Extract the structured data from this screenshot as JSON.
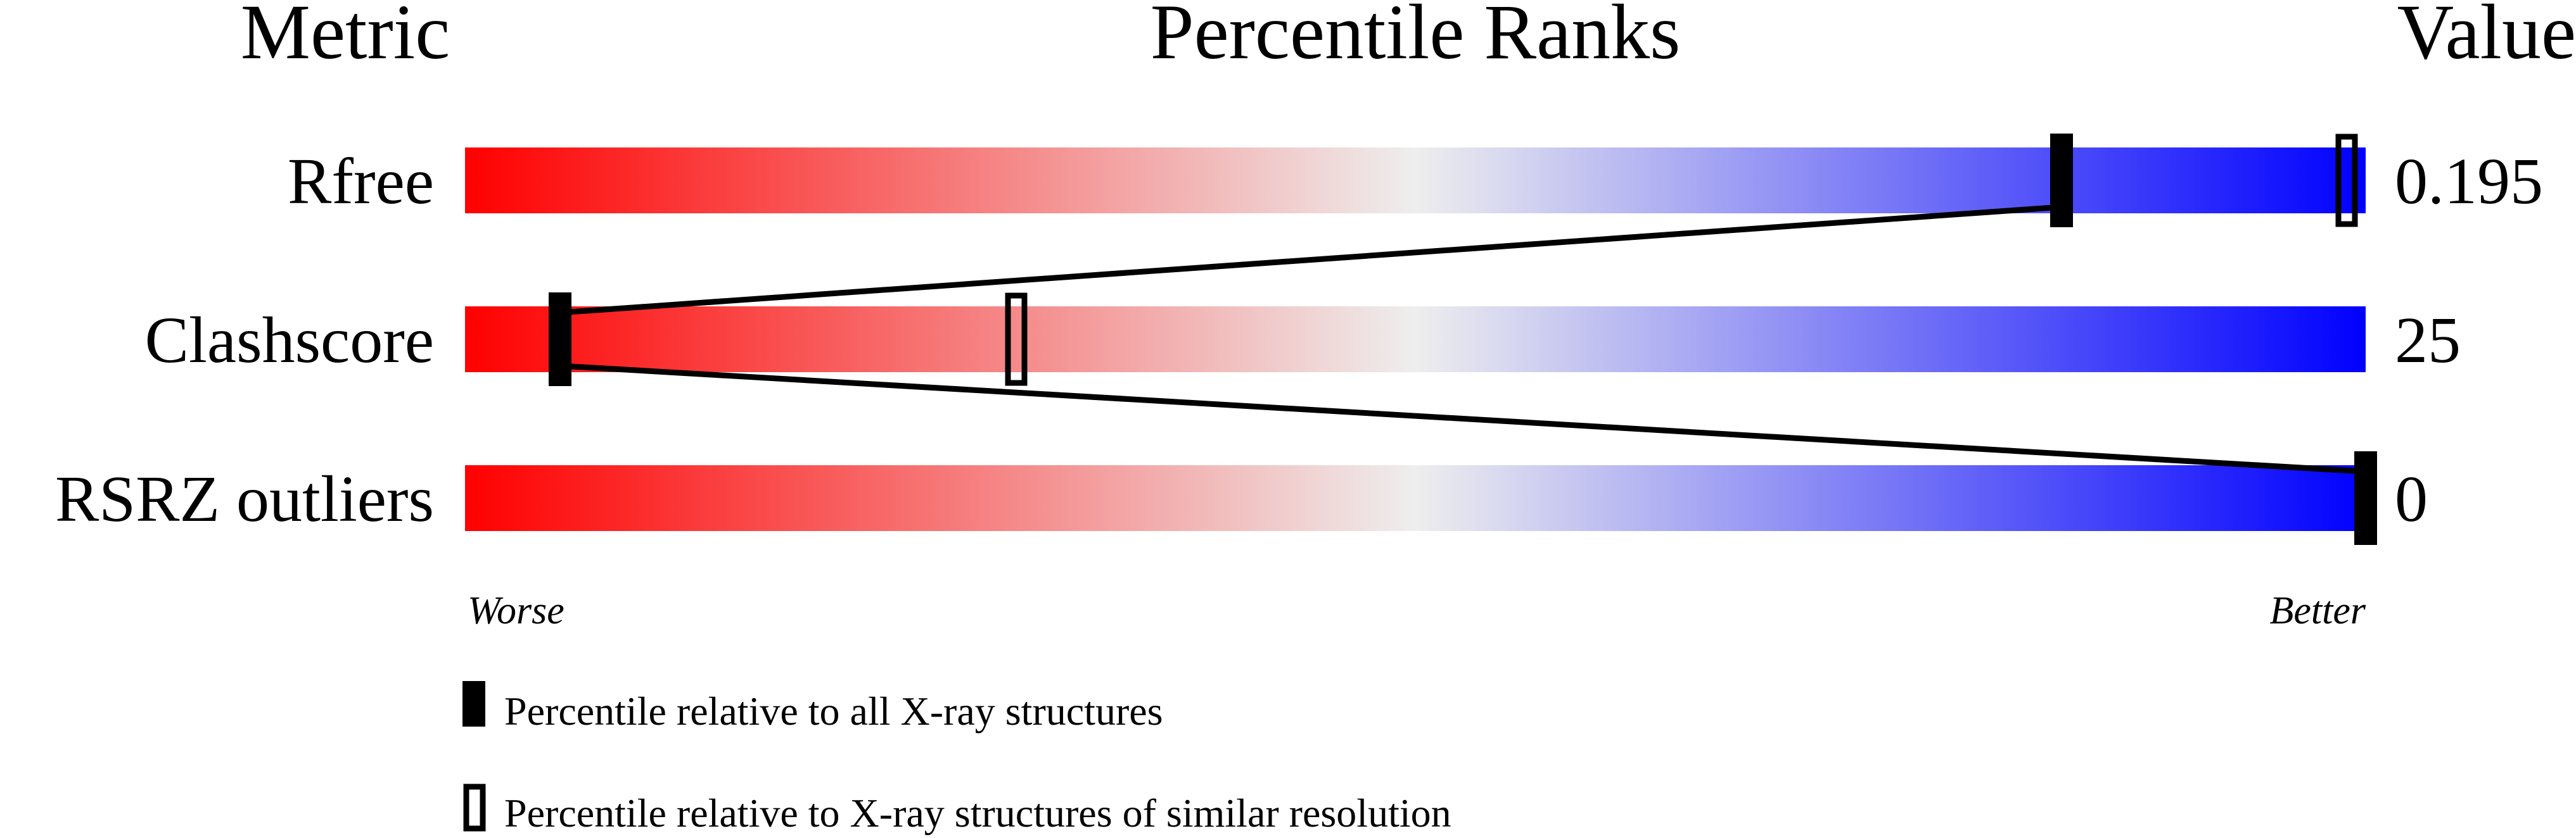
{
  "chart_data": {
    "type": "percentile-bars",
    "headers": {
      "metric": "Metric",
      "title": "Percentile Ranks",
      "value": "Value"
    },
    "xlim": [
      0,
      100
    ],
    "scale_labels": {
      "left": "Worse",
      "right": "Better"
    },
    "gradient_colors": [
      "#ff0000",
      "#eeeeee",
      "#0000ff"
    ],
    "metrics": [
      {
        "name": "Rfree",
        "value": "0.195",
        "percentile_all": 84,
        "percentile_similar": 99
      },
      {
        "name": "Clashscore",
        "value": "25",
        "percentile_all": 5,
        "percentile_similar": 29
      },
      {
        "name": "RSRZ outliers",
        "value": "0",
        "percentile_all": 100,
        "percentile_similar": null
      }
    ],
    "legend": [
      {
        "marker": "filled",
        "label": "Percentile relative to all X-ray structures"
      },
      {
        "marker": "hollow",
        "label": "Percentile relative to X-ray structures of similar resolution"
      }
    ]
  }
}
